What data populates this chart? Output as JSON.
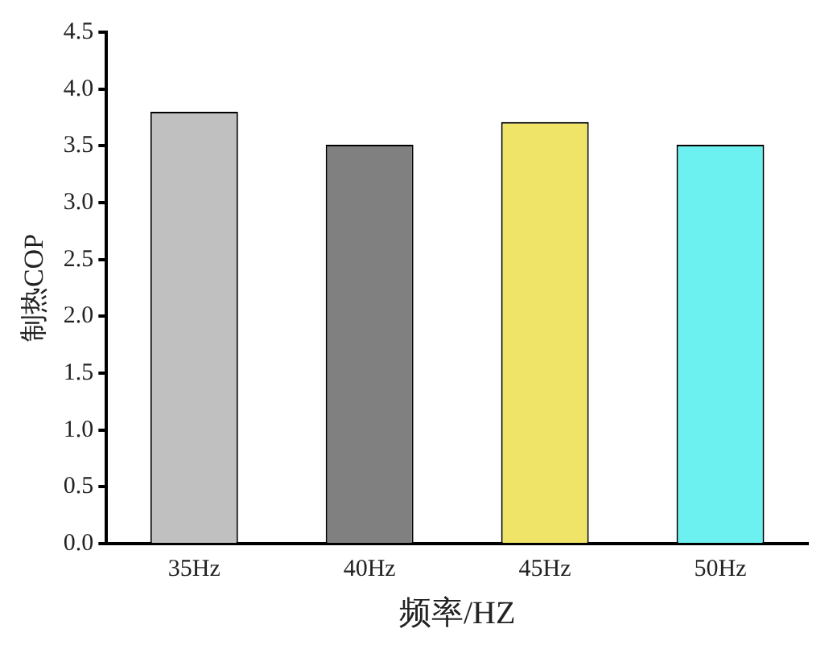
{
  "chart_data": {
    "type": "bar",
    "xlabel": "频率/HZ",
    "ylabel": "制热COP",
    "categories": [
      "35Hz",
      "40Hz",
      "45Hz",
      "50Hz"
    ],
    "values": [
      3.8,
      3.51,
      3.71,
      3.51
    ],
    "colors": [
      "#c0c0c0",
      "#808080",
      "#f0e468",
      "#6cf0f0"
    ],
    "ylim": [
      0,
      4.5
    ],
    "yticks": [
      {
        "value": 0,
        "label": "0.0"
      },
      0.5,
      {
        "value": 1,
        "label": "1.0"
      },
      1.5,
      {
        "value": 2,
        "label": "2.0"
      },
      2.5,
      {
        "value": 3,
        "label": "3.0"
      },
      3.5,
      {
        "value": 4,
        "label": "4.0"
      },
      4.5
    ],
    "grid": false,
    "legend": false
  }
}
